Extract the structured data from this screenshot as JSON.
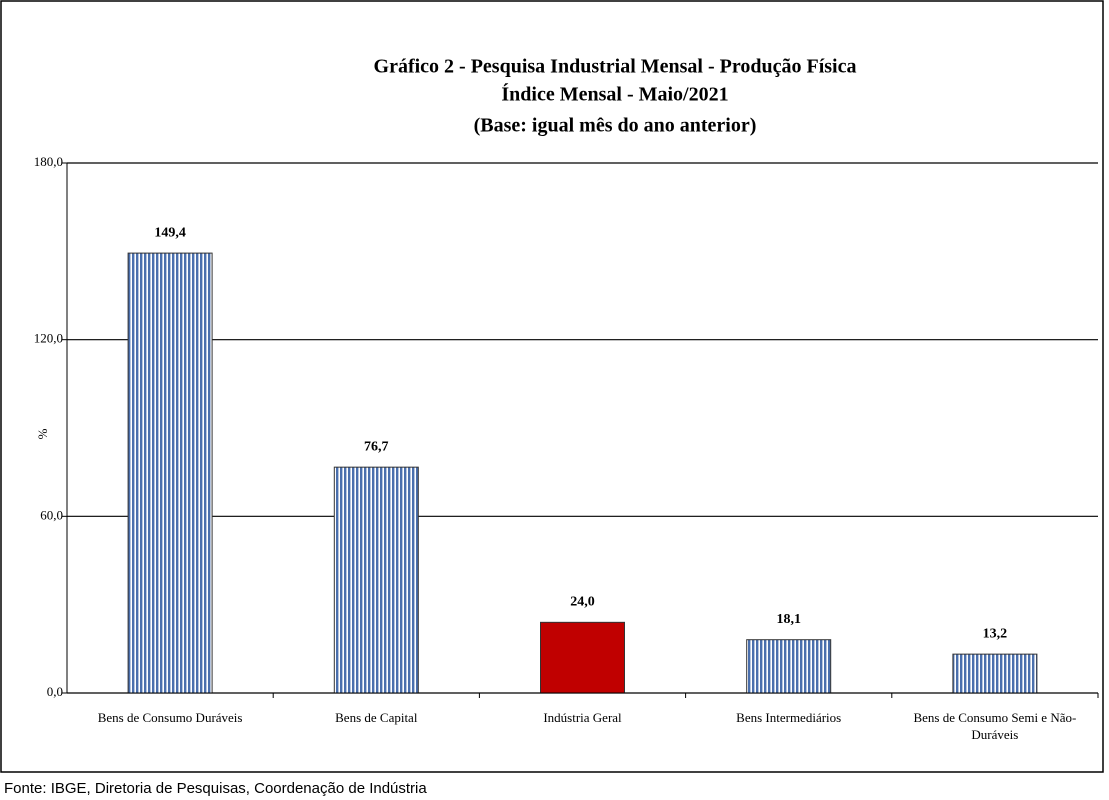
{
  "chart_data": {
    "type": "bar",
    "title": "Gráfico 2 - Pesquisa Industrial Mensal - Produção Física",
    "subtitle": [
      "Índice Mensal - Maio/2021",
      "(Base: igual mês do ano anterior)"
    ],
    "y_label": "%",
    "categories": [
      "Bens de Consumo Duráveis",
      "Bens de Capital",
      "Indústria Geral",
      "Bens Intermediários",
      "Bens de Consumo Semi e Não-Duráveis"
    ],
    "values": [
      149.4,
      76.7,
      24.0,
      18.1,
      13.2
    ],
    "value_labels": [
      "149,4",
      "76,7",
      "24,0",
      "18,1",
      "13,2"
    ],
    "colors": [
      "#4a6fad",
      "#4a6fad",
      "#c00000",
      "#4a6fad",
      "#4a6fad"
    ],
    "hatch": [
      true,
      true,
      false,
      true,
      true
    ],
    "ylim": [
      0,
      180
    ],
    "yticks": [
      {
        "value": 0,
        "label": "0,0"
      },
      {
        "value": 60,
        "label": "60,0"
      },
      {
        "value": 120,
        "label": "120,0"
      },
      {
        "value": 180,
        "label": "180,0"
      }
    ],
    "grid": true,
    "source": "Fonte: IBGE, Diretoria de Pesquisas, Coordenação de Indústria"
  }
}
